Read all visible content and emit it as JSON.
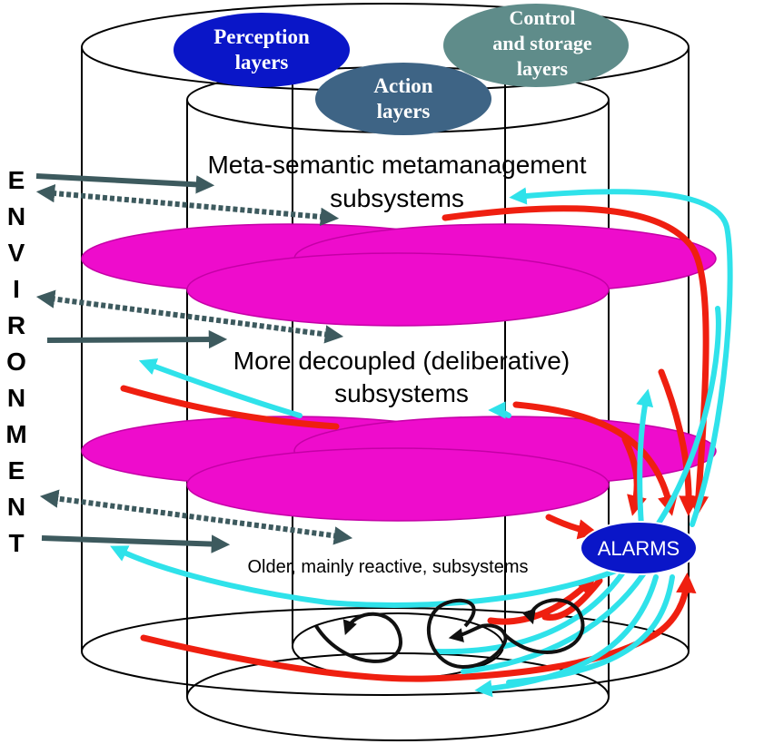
{
  "bubbles": {
    "perception": [
      "Perception",
      "layers"
    ],
    "action": [
      "Action",
      "layers"
    ],
    "control": [
      "Control",
      "and storage",
      "layers"
    ]
  },
  "labels": {
    "meta_line1": "Meta-semantic metamanagement",
    "meta_line2": "subsystems",
    "delib_line1": "More decoupled (deliberative)",
    "delib_line2": "subsystems",
    "reactive": "Older, mainly reactive, subsystems",
    "alarms": "ALARMS"
  },
  "environment_letters": [
    "E",
    "N",
    "V",
    "I",
    "R",
    "O",
    "N",
    "M",
    "E",
    "N",
    "T"
  ],
  "colors": {
    "perception_bubble": "#0a16c8",
    "action_bubble": "#3e6485",
    "control_bubble": "#5f8c8a",
    "layer_disc": "#ee0ccc",
    "alarms_bubble": "#0a16c8",
    "red_arrow": "#ef1f10",
    "cyan_arrow": "#2fe2ea",
    "env_arrow": "#3d5a5e",
    "loop": "#111111"
  }
}
